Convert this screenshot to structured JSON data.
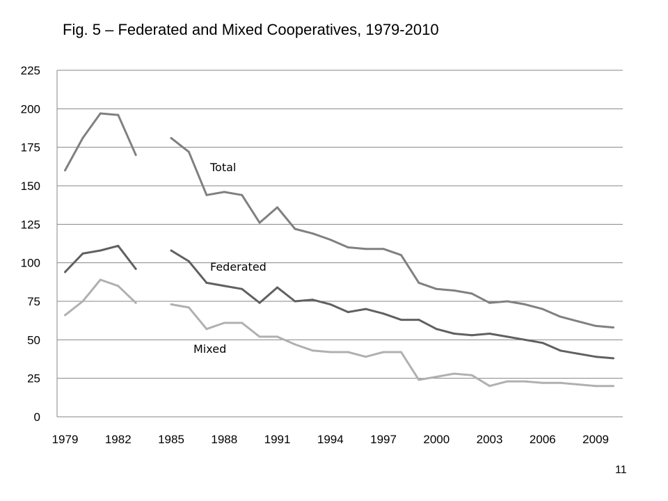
{
  "page": {
    "number": "11"
  },
  "chart_data": {
    "type": "line",
    "title": "Fig. 5 – Federated and Mixed Cooperatives, 1979-2010",
    "xlabel": "",
    "ylabel": "",
    "ylim": [
      0,
      225
    ],
    "y_ticks": [
      "0",
      "25",
      "50",
      "75",
      "100",
      "125",
      "150",
      "175",
      "200",
      "225"
    ],
    "x_ticks": [
      "1979",
      "1982",
      "1985",
      "1988",
      "1991",
      "1994",
      "1997",
      "2000",
      "2003",
      "2006",
      "2009"
    ],
    "xlim": [
      1979,
      2010
    ],
    "grid": true,
    "legend": "none",
    "x": [
      1979,
      1980,
      1981,
      1982,
      1983,
      1984,
      1985,
      1986,
      1987,
      1988,
      1989,
      1990,
      1991,
      1992,
      1993,
      1994,
      1995,
      1996,
      1997,
      1998,
      1999,
      2000,
      2001,
      2002,
      2003,
      2004,
      2005,
      2006,
      2007,
      2008,
      2009,
      2010
    ],
    "series": [
      {
        "name": "Total",
        "color": "#808080",
        "values": [
          160,
          181,
          197,
          196,
          170,
          null,
          181,
          172,
          144,
          146,
          144,
          126,
          136,
          122,
          119,
          115,
          110,
          109,
          109,
          105,
          87,
          83,
          82,
          80,
          74,
          75,
          73,
          70,
          65,
          62,
          59,
          58
        ]
      },
      {
        "name": "Federated",
        "color": "#606060",
        "values": [
          94,
          106,
          108,
          111,
          96,
          null,
          108,
          101,
          87,
          85,
          83,
          74,
          84,
          75,
          76,
          73,
          68,
          70,
          67,
          63,
          63,
          57,
          54,
          53,
          54,
          52,
          50,
          48,
          43,
          41,
          39,
          38
        ]
      },
      {
        "name": "Mixed",
        "color": "#b0b0b0",
        "values": [
          66,
          75,
          89,
          85,
          74,
          null,
          73,
          71,
          57,
          61,
          61,
          52,
          52,
          47,
          43,
          42,
          42,
          39,
          42,
          42,
          24,
          26,
          28,
          27,
          20,
          23,
          23,
          22,
          22,
          21,
          20,
          20
        ]
      }
    ]
  }
}
